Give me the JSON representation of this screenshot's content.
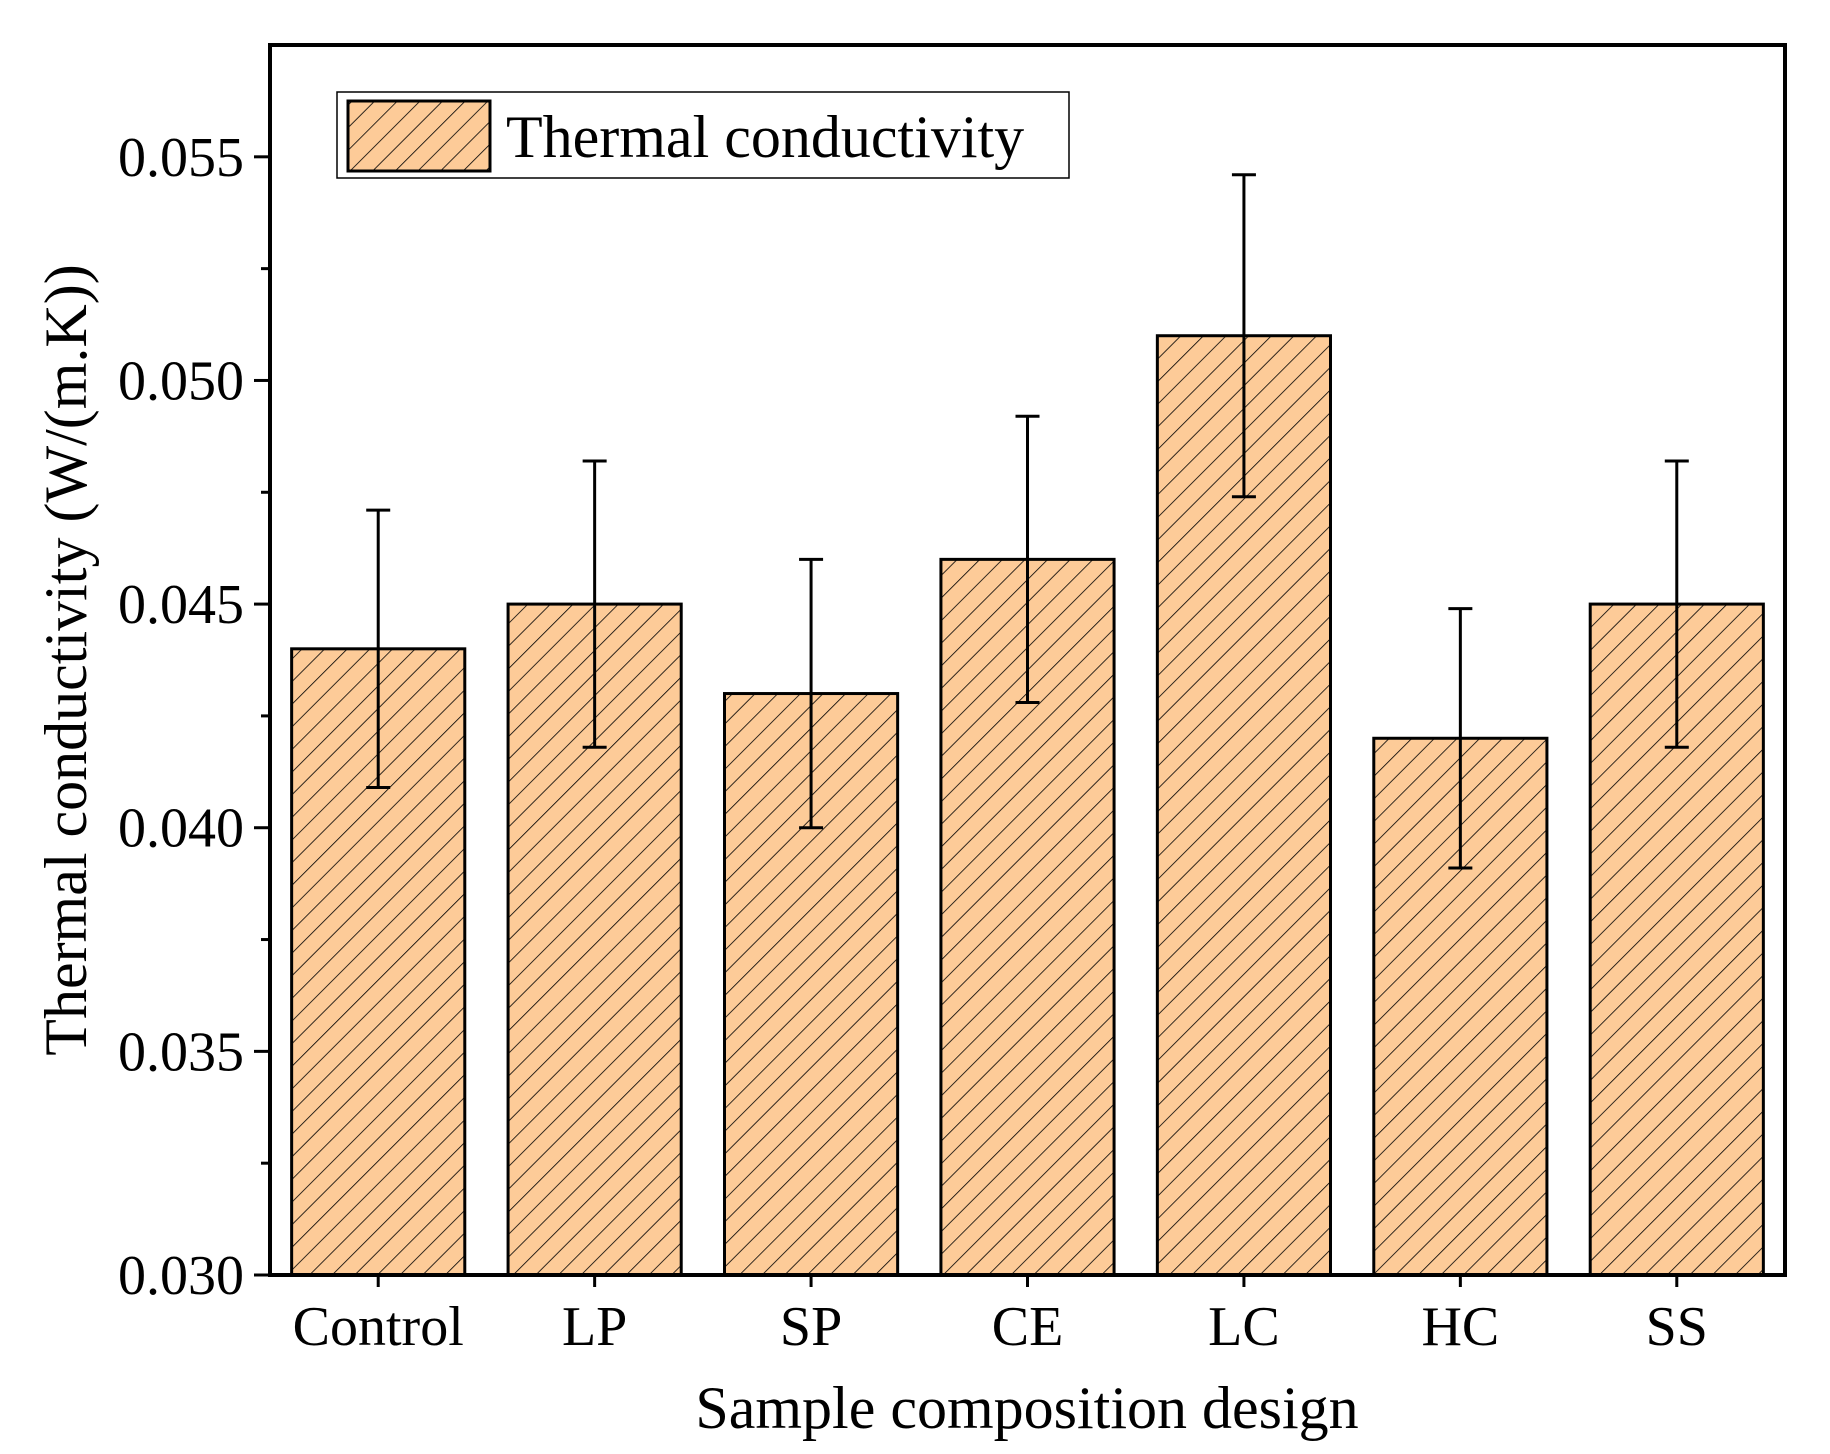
{
  "chart_data": {
    "type": "bar",
    "title": "",
    "xlabel": "Sample composition design",
    "ylabel": "Thermal conductivity (W/(m.K))",
    "ylim": [
      0.03,
      0.0575
    ],
    "ytick_step": 0.005,
    "ytick_labels": [
      "0.030",
      "0.035",
      "0.040",
      "0.045",
      "0.050",
      "0.055"
    ],
    "minor_ticks": true,
    "grid": false,
    "legend_position": "top-left",
    "categories": [
      "Control",
      "LP",
      "SP",
      "CE",
      "LC",
      "HC",
      "SS"
    ],
    "series": [
      {
        "name": "Thermal conductivity",
        "values": [
          0.044,
          0.045,
          0.043,
          0.046,
          0.051,
          0.042,
          0.045
        ],
        "errors": [
          0.0031,
          0.0032,
          0.003,
          0.0032,
          0.0036,
          0.0029,
          0.0032
        ]
      }
    ],
    "colors": {
      "bar_fill": "#FDCB98",
      "hatch": "#000000",
      "stroke": "#000000"
    }
  }
}
